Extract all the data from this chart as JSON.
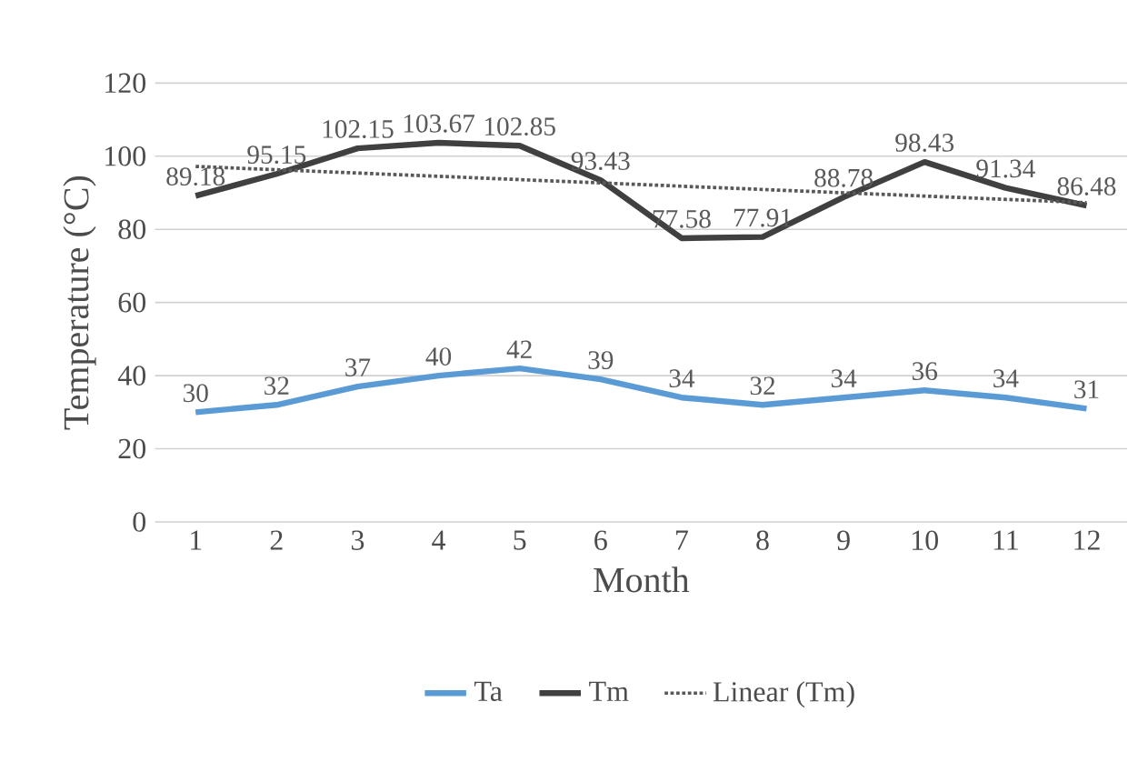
{
  "chart_data": {
    "type": "line",
    "xlabel": "Month",
    "ylabel": "Temperature (°C)",
    "x": [
      1,
      2,
      3,
      4,
      5,
      6,
      7,
      8,
      9,
      10,
      11,
      12
    ],
    "xlim": [
      0.5,
      12.5
    ],
    "xticks": [
      1,
      2,
      3,
      4,
      5,
      6,
      7,
      8,
      9,
      10,
      11,
      12
    ],
    "ylim": [
      0,
      120
    ],
    "yticks": [
      0,
      20,
      40,
      60,
      80,
      100,
      120
    ],
    "grid": "y",
    "legend": "bottom",
    "series": [
      {
        "name": "Ta",
        "color": "#5b9bd5",
        "values": [
          30,
          32,
          37,
          40,
          42,
          39,
          34,
          32,
          34,
          36,
          34,
          31
        ],
        "value_labels": [
          "30",
          "32",
          "37",
          "40",
          "42",
          "39",
          "34",
          "32",
          "34",
          "36",
          "34",
          "31"
        ]
      },
      {
        "name": "Tm",
        "color": "#404040",
        "values": [
          89.18,
          95.15,
          102.15,
          103.67,
          102.85,
          93.43,
          77.58,
          77.91,
          88.78,
          98.43,
          91.34,
          86.48
        ],
        "value_labels": [
          "89.18",
          "95.15",
          "102.15",
          "103.67",
          "102.85",
          "93.43",
          "77.58",
          "77.91",
          "88.78",
          "98.43",
          "91.34",
          "86.48"
        ]
      },
      {
        "name": "Linear (Tm)",
        "color": "#595959",
        "line_style": "dotted",
        "x": [
          1,
          12
        ],
        "values": [
          97.2,
          87.3
        ]
      }
    ]
  }
}
